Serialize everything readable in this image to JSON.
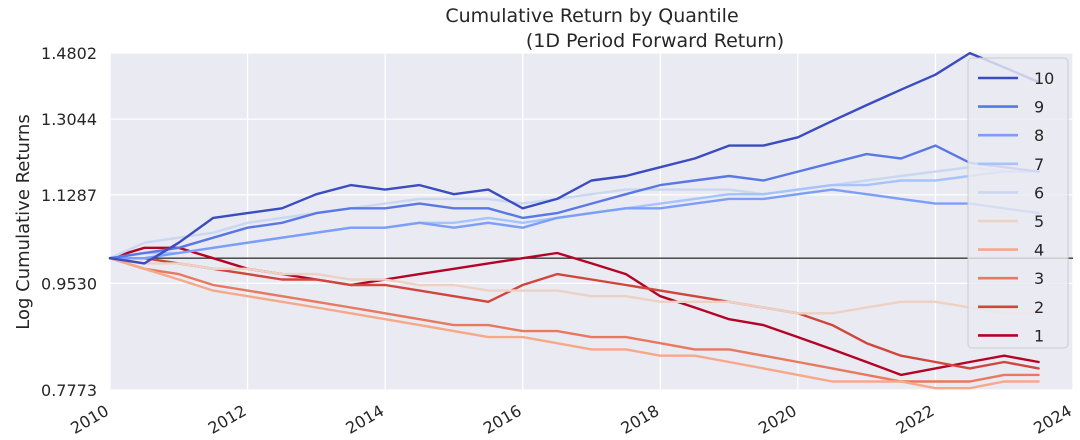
{
  "chart_data": {
    "type": "line",
    "title": "Cumulative Return by Quantile",
    "subtitle": "(1D Period Forward Return)",
    "xlabel": "",
    "ylabel": "Log Cumulative Returns",
    "xlim": [
      2010.0,
      2024.0
    ],
    "ylim": [
      0.7773,
      1.4802
    ],
    "y_scale": "log",
    "grid": true,
    "background": "#EAEAF2",
    "reference_line": 1.0,
    "legend_position": "right",
    "x_ticks": [
      "2010",
      "2012",
      "2014",
      "2016",
      "2018",
      "2020",
      "2022",
      "2024"
    ],
    "x_tick_values": [
      2010,
      2012,
      2014,
      2016,
      2018,
      2020,
      2022,
      2024
    ],
    "y_ticks": [
      "1.4802",
      "1.3044",
      "1.1287",
      "0.9530",
      "0.7773"
    ],
    "y_tick_values": [
      1.4802,
      1.3044,
      1.1287,
      0.953,
      0.7773
    ],
    "series": [
      {
        "name": "10",
        "color": "#3B4CC0",
        "x": [
          2010.0,
          2010.5,
          2011.0,
          2011.5,
          2012.0,
          2012.5,
          2013.0,
          2013.5,
          2014.0,
          2014.5,
          2015.0,
          2015.5,
          2016.0,
          2016.5,
          2017.0,
          2017.5,
          2018.0,
          2018.5,
          2019.0,
          2019.5,
          2020.0,
          2020.5,
          2021.0,
          2021.5,
          2022.0,
          2022.5,
          2023.0,
          2023.5
        ],
        "y": [
          1.0,
          0.99,
          1.03,
          1.08,
          1.09,
          1.1,
          1.13,
          1.15,
          1.14,
          1.15,
          1.13,
          1.14,
          1.1,
          1.12,
          1.16,
          1.17,
          1.19,
          1.21,
          1.24,
          1.24,
          1.26,
          1.3,
          1.34,
          1.38,
          1.42,
          1.48,
          1.44,
          1.4
        ]
      },
      {
        "name": "9",
        "color": "#5A78E4",
        "x": [
          2010.0,
          2010.5,
          2011.0,
          2011.5,
          2012.0,
          2012.5,
          2013.0,
          2013.5,
          2014.0,
          2014.5,
          2015.0,
          2015.5,
          2016.0,
          2016.5,
          2017.0,
          2017.5,
          2018.0,
          2018.5,
          2019.0,
          2019.5,
          2020.0,
          2020.5,
          2021.0,
          2021.5,
          2022.0,
          2022.5,
          2023.0,
          2023.5
        ],
        "y": [
          1.0,
          1.01,
          1.02,
          1.04,
          1.06,
          1.07,
          1.09,
          1.1,
          1.1,
          1.11,
          1.1,
          1.1,
          1.08,
          1.09,
          1.11,
          1.13,
          1.15,
          1.16,
          1.17,
          1.16,
          1.18,
          1.2,
          1.22,
          1.21,
          1.24,
          1.2,
          1.19,
          1.18
        ]
      },
      {
        "name": "8",
        "color": "#7B9FF9",
        "x": [
          2010.0,
          2010.5,
          2011.0,
          2011.5,
          2012.0,
          2012.5,
          2013.0,
          2013.5,
          2014.0,
          2014.5,
          2015.0,
          2015.5,
          2016.0,
          2016.5,
          2017.0,
          2017.5,
          2018.0,
          2018.5,
          2019.0,
          2019.5,
          2020.0,
          2020.5,
          2021.0,
          2021.5,
          2022.0,
          2022.5,
          2023.0,
          2023.5
        ],
        "y": [
          1.0,
          1.0,
          1.01,
          1.02,
          1.03,
          1.04,
          1.05,
          1.06,
          1.06,
          1.07,
          1.06,
          1.07,
          1.06,
          1.08,
          1.09,
          1.1,
          1.1,
          1.11,
          1.12,
          1.12,
          1.13,
          1.14,
          1.13,
          1.12,
          1.11,
          1.11,
          1.1,
          1.09
        ]
      },
      {
        "name": "7",
        "color": "#A6C3FD",
        "x": [
          2010.0,
          2010.5,
          2011.0,
          2011.5,
          2012.0,
          2012.5,
          2013.0,
          2013.5,
          2014.0,
          2014.5,
          2015.0,
          2015.5,
          2016.0,
          2016.5,
          2017.0,
          2017.5,
          2018.0,
          2018.5,
          2019.0,
          2019.5,
          2020.0,
          2020.5,
          2021.0,
          2021.5,
          2022.0,
          2022.5,
          2023.0,
          2023.5
        ],
        "y": [
          1.0,
          1.01,
          1.01,
          1.02,
          1.03,
          1.04,
          1.05,
          1.06,
          1.06,
          1.07,
          1.07,
          1.08,
          1.07,
          1.08,
          1.09,
          1.1,
          1.11,
          1.12,
          1.13,
          1.13,
          1.14,
          1.15,
          1.15,
          1.16,
          1.16,
          1.17,
          1.18,
          1.18
        ]
      },
      {
        "name": "6",
        "color": "#C9D7F0",
        "x": [
          2010.0,
          2010.5,
          2011.0,
          2011.5,
          2012.0,
          2012.5,
          2013.0,
          2013.5,
          2014.0,
          2014.5,
          2015.0,
          2015.5,
          2016.0,
          2016.5,
          2017.0,
          2017.5,
          2018.0,
          2018.5,
          2019.0,
          2019.5,
          2020.0,
          2020.5,
          2021.0,
          2021.5,
          2022.0,
          2022.5,
          2023.0,
          2023.5
        ],
        "y": [
          1.0,
          1.03,
          1.04,
          1.05,
          1.07,
          1.08,
          1.09,
          1.1,
          1.11,
          1.12,
          1.12,
          1.12,
          1.11,
          1.12,
          1.13,
          1.14,
          1.14,
          1.14,
          1.14,
          1.13,
          1.14,
          1.15,
          1.16,
          1.17,
          1.18,
          1.19,
          1.18,
          1.18
        ]
      },
      {
        "name": "5",
        "color": "#EDD1C2",
        "x": [
          2010.0,
          2010.5,
          2011.0,
          2011.5,
          2012.0,
          2012.5,
          2013.0,
          2013.5,
          2014.0,
          2014.5,
          2015.0,
          2015.5,
          2016.0,
          2016.5,
          2017.0,
          2017.5,
          2018.0,
          2018.5,
          2019.0,
          2019.5,
          2020.0,
          2020.5,
          2021.0,
          2021.5,
          2022.0,
          2022.5,
          2023.0,
          2023.5
        ],
        "y": [
          1.0,
          0.99,
          0.99,
          0.98,
          0.98,
          0.97,
          0.97,
          0.96,
          0.96,
          0.95,
          0.95,
          0.94,
          0.94,
          0.94,
          0.93,
          0.93,
          0.92,
          0.92,
          0.92,
          0.91,
          0.9,
          0.9,
          0.91,
          0.92,
          0.92,
          0.91,
          0.9,
          0.9
        ]
      },
      {
        "name": "4",
        "color": "#F7A889",
        "x": [
          2010.0,
          2010.5,
          2011.0,
          2011.5,
          2012.0,
          2012.5,
          2013.0,
          2013.5,
          2014.0,
          2014.5,
          2015.0,
          2015.5,
          2016.0,
          2016.5,
          2017.0,
          2017.5,
          2018.0,
          2018.5,
          2019.0,
          2019.5,
          2020.0,
          2020.5,
          2021.0,
          2021.5,
          2022.0,
          2022.5,
          2023.0,
          2023.5
        ],
        "y": [
          1.0,
          0.98,
          0.96,
          0.94,
          0.93,
          0.92,
          0.91,
          0.9,
          0.89,
          0.88,
          0.87,
          0.86,
          0.86,
          0.85,
          0.84,
          0.84,
          0.83,
          0.83,
          0.82,
          0.81,
          0.8,
          0.79,
          0.79,
          0.79,
          0.78,
          0.78,
          0.79,
          0.79
        ]
      },
      {
        "name": "3",
        "color": "#E8795F",
        "x": [
          2010.0,
          2010.5,
          2011.0,
          2011.5,
          2012.0,
          2012.5,
          2013.0,
          2013.5,
          2014.0,
          2014.5,
          2015.0,
          2015.5,
          2016.0,
          2016.5,
          2017.0,
          2017.5,
          2018.0,
          2018.5,
          2019.0,
          2019.5,
          2020.0,
          2020.5,
          2021.0,
          2021.5,
          2022.0,
          2022.5,
          2023.0,
          2023.5
        ],
        "y": [
          1.0,
          0.98,
          0.97,
          0.95,
          0.94,
          0.93,
          0.92,
          0.91,
          0.9,
          0.89,
          0.88,
          0.88,
          0.87,
          0.87,
          0.86,
          0.86,
          0.85,
          0.84,
          0.84,
          0.83,
          0.82,
          0.81,
          0.8,
          0.79,
          0.79,
          0.79,
          0.8,
          0.8
        ]
      },
      {
        "name": "2",
        "color": "#D0463D",
        "x": [
          2010.0,
          2010.5,
          2011.0,
          2011.5,
          2012.0,
          2012.5,
          2013.0,
          2013.5,
          2014.0,
          2014.5,
          2015.0,
          2015.5,
          2016.0,
          2016.5,
          2017.0,
          2017.5,
          2018.0,
          2018.5,
          2019.0,
          2019.5,
          2020.0,
          2020.5,
          2021.0,
          2021.5,
          2022.0,
          2022.5,
          2023.0,
          2023.5
        ],
        "y": [
          1.0,
          1.0,
          0.99,
          0.98,
          0.97,
          0.96,
          0.96,
          0.95,
          0.95,
          0.94,
          0.93,
          0.92,
          0.95,
          0.97,
          0.96,
          0.95,
          0.94,
          0.93,
          0.92,
          0.91,
          0.9,
          0.88,
          0.85,
          0.83,
          0.82,
          0.81,
          0.82,
          0.81
        ]
      },
      {
        "name": "1",
        "color": "#B40426",
        "x": [
          2010.0,
          2010.5,
          2011.0,
          2011.5,
          2012.0,
          2012.5,
          2013.0,
          2013.5,
          2014.0,
          2014.5,
          2015.0,
          2015.5,
          2016.0,
          2016.5,
          2017.0,
          2017.5,
          2018.0,
          2018.5,
          2019.0,
          2019.5,
          2020.0,
          2020.5,
          2021.0,
          2021.5,
          2022.0,
          2022.5,
          2023.0,
          2023.5
        ],
        "y": [
          1.0,
          1.02,
          1.02,
          1.0,
          0.98,
          0.97,
          0.96,
          0.95,
          0.96,
          0.97,
          0.98,
          0.99,
          1.0,
          1.01,
          0.99,
          0.97,
          0.93,
          0.91,
          0.89,
          0.88,
          0.86,
          0.84,
          0.82,
          0.8,
          0.81,
          0.82,
          0.83,
          0.82
        ]
      }
    ]
  }
}
